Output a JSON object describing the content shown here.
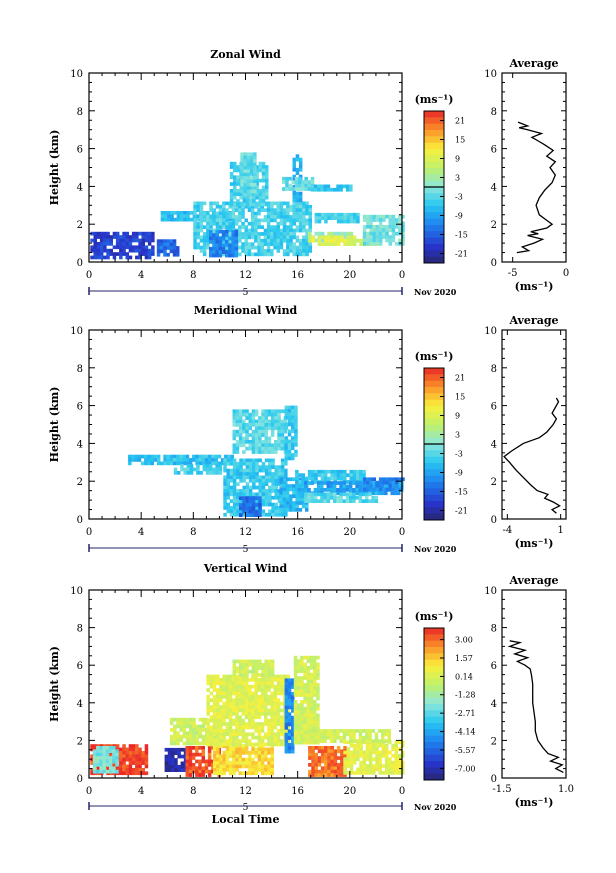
{
  "x_axis": {
    "ticks": [
      "0",
      "4",
      "8",
      "12",
      "16",
      "20",
      "0"
    ],
    "date_marker": "5",
    "date_label": "Nov 2020",
    "xlabel": "Local Time"
  },
  "units_label": "(ms⁻¹)",
  "average_title": "Average",
  "chart_data": [
    {
      "type": "heatmap",
      "title": "Zonal Wind",
      "ylabel": "Height (km)",
      "xlim": [
        0,
        24
      ],
      "ylim": [
        0,
        10
      ],
      "y_ticks": [
        "0",
        "2",
        "4",
        "6",
        "8",
        "10"
      ],
      "colorbar": {
        "units": "(ms⁻¹)",
        "range": [
          -24,
          24
        ],
        "ticks": [
          "21",
          "15",
          "9",
          "3",
          "-3",
          "-9",
          "-15",
          "-21"
        ],
        "tick_values": [
          21,
          15,
          9,
          3,
          -3,
          -9,
          -15,
          -21
        ]
      },
      "regions": [
        {
          "x": [
            0.1,
            4.9
          ],
          "y": [
            0.3,
            1.6
          ],
          "value": -18
        },
        {
          "x": [
            5.2,
            6.8
          ],
          "y": [
            0.4,
            1.2
          ],
          "value": -14
        },
        {
          "x": [
            5.5,
            11
          ],
          "y": [
            2.2,
            2.7
          ],
          "value": -6
        },
        {
          "x": [
            8,
            17
          ],
          "y": [
            0.4,
            3.2
          ],
          "value": -4
        },
        {
          "x": [
            9.2,
            11.2
          ],
          "y": [
            0.3,
            1.7
          ],
          "value": -12
        },
        {
          "x": [
            10.8,
            13.5
          ],
          "y": [
            3.0,
            5.3
          ],
          "value": -4
        },
        {
          "x": [
            11.6,
            12.6
          ],
          "y": [
            3.6,
            5.8
          ],
          "value": -2
        },
        {
          "x": [
            15.6,
            16.2
          ],
          "y": [
            3.2,
            5.7
          ],
          "value": -8
        },
        {
          "x": [
            14.8,
            17.2
          ],
          "y": [
            3.9,
            4.5
          ],
          "value": -2
        },
        {
          "x": [
            17,
            20
          ],
          "y": [
            3.9,
            4.1
          ],
          "value": -5
        },
        {
          "x": [
            16.8,
            20
          ],
          "y": [
            1.2,
            1.6
          ],
          "value": 2
        },
        {
          "x": [
            16.8,
            22
          ],
          "y": [
            0.9,
            1.4
          ],
          "value": 9
        },
        {
          "x": [
            17.3,
            20.6
          ],
          "y": [
            2.1,
            2.6
          ],
          "value": -4
        },
        {
          "x": [
            21,
            24
          ],
          "y": [
            0.9,
            2.5
          ],
          "value": -1
        }
      ],
      "average_profile": {
        "xlim": [
          -6,
          0
        ],
        "x_ticks": [
          "-5",
          "0"
        ],
        "x_tick_values": [
          -5,
          0
        ],
        "xlabel": "(ms⁻¹)",
        "points": [
          [
            -4.6,
            0.5
          ],
          [
            -3.5,
            0.6
          ],
          [
            -4.1,
            0.8
          ],
          [
            -3.0,
            1.0
          ],
          [
            -2.2,
            1.2
          ],
          [
            -3.6,
            1.4
          ],
          [
            -2.6,
            1.5
          ],
          [
            -3.3,
            1.6
          ],
          [
            -1.8,
            1.8
          ],
          [
            -1.3,
            2.0
          ],
          [
            -1.8,
            2.2
          ],
          [
            -2.5,
            2.5
          ],
          [
            -2.8,
            3.0
          ],
          [
            -2.5,
            3.4
          ],
          [
            -2.0,
            3.8
          ],
          [
            -1.3,
            4.2
          ],
          [
            -1.0,
            4.6
          ],
          [
            -1.5,
            5.0
          ],
          [
            -1.0,
            5.3
          ],
          [
            -1.8,
            5.6
          ],
          [
            -1.2,
            5.9
          ],
          [
            -2.0,
            6.2
          ],
          [
            -2.6,
            6.4
          ],
          [
            -3.2,
            6.6
          ],
          [
            -2.3,
            6.8
          ],
          [
            -3.6,
            7.0
          ],
          [
            -4.4,
            7.1
          ],
          [
            -3.6,
            7.2
          ],
          [
            -4.5,
            7.4
          ]
        ]
      }
    },
    {
      "type": "heatmap",
      "title": "Meridional Wind",
      "ylabel": "Height (km)",
      "xlim": [
        0,
        24
      ],
      "ylim": [
        0,
        10
      ],
      "y_ticks": [
        "0",
        "2",
        "4",
        "6",
        "8",
        "10"
      ],
      "colorbar": {
        "units": "(ms⁻¹)",
        "range": [
          -24,
          24
        ],
        "ticks": [
          "21",
          "15",
          "9",
          "3",
          "-3",
          "-9",
          "-15",
          "-21"
        ],
        "tick_values": [
          21,
          15,
          9,
          3,
          -3,
          -9,
          -15,
          -21
        ]
      },
      "regions": [
        {
          "x": [
            3,
            11
          ],
          "y": [
            3.0,
            3.4
          ],
          "value": -6
        },
        {
          "x": [
            6.5,
            10
          ],
          "y": [
            2.4,
            2.9
          ],
          "value": -4
        },
        {
          "x": [
            10.3,
            15
          ],
          "y": [
            0.2,
            3.2
          ],
          "value": -5
        },
        {
          "x": [
            11,
            15
          ],
          "y": [
            3.5,
            5.8
          ],
          "value": -3
        },
        {
          "x": [
            11.5,
            13.2
          ],
          "y": [
            0.3,
            1.2
          ],
          "value": -14
        },
        {
          "x": [
            14.6,
            16.8
          ],
          "y": [
            0.5,
            2.2
          ],
          "value": -7
        },
        {
          "x": [
            15,
            15.8
          ],
          "y": [
            3.2,
            6.0
          ],
          "value": -5
        },
        {
          "x": [
            15.8,
            21
          ],
          "y": [
            2.0,
            2.6
          ],
          "value": -5
        },
        {
          "x": [
            16,
            24
          ],
          "y": [
            1.3,
            2.0
          ],
          "value": -9
        },
        {
          "x": [
            16.5,
            22
          ],
          "y": [
            0.9,
            1.4
          ],
          "value": -3
        },
        {
          "x": [
            21,
            24
          ],
          "y": [
            1.6,
            2.2
          ],
          "value": -12
        }
      ],
      "average_profile": {
        "xlim": [
          -4.5,
          1.5
        ],
        "x_ticks": [
          "-4",
          "1"
        ],
        "x_tick_values": [
          -4,
          1
        ],
        "xlabel": "(ms⁻¹)",
        "points": [
          [
            0.6,
            0.3
          ],
          [
            0.2,
            0.5
          ],
          [
            0.9,
            0.7
          ],
          [
            0.3,
            0.9
          ],
          [
            -0.5,
            1.1
          ],
          [
            -0.2,
            1.3
          ],
          [
            -1.2,
            1.5
          ],
          [
            -1.8,
            1.8
          ],
          [
            -2.5,
            2.2
          ],
          [
            -3.2,
            2.6
          ],
          [
            -3.8,
            3.0
          ],
          [
            -4.3,
            3.3
          ],
          [
            -3.6,
            3.6
          ],
          [
            -2.5,
            4.0
          ],
          [
            -1.0,
            4.3
          ],
          [
            -0.3,
            4.6
          ],
          [
            0.3,
            5.0
          ],
          [
            0.6,
            5.3
          ],
          [
            0.2,
            5.6
          ],
          [
            0.5,
            5.9
          ],
          [
            0.8,
            6.2
          ],
          [
            0.6,
            6.4
          ]
        ]
      }
    },
    {
      "type": "heatmap",
      "title": "Vertical Wind",
      "ylabel": "Height (km)",
      "xlim": [
        0,
        24
      ],
      "ylim": [
        0,
        10
      ],
      "y_ticks": [
        "0",
        "2",
        "4",
        "6",
        "8",
        "10"
      ],
      "colorbar": {
        "units": "(ms⁻¹)",
        "range": [
          -7.9,
          3.9
        ],
        "ticks": [
          "3.00",
          "1.57",
          "0.14",
          "-1.28",
          "-2.71",
          "-4.14",
          "-5.57",
          "-7.00"
        ],
        "tick_values": [
          3.0,
          1.57,
          0.14,
          -1.28,
          -2.71,
          -4.14,
          -5.57,
          -7.0
        ]
      },
      "regions": [
        {
          "x": [
            0.1,
            4.5
          ],
          "y": [
            0.2,
            1.8
          ],
          "value": 3.5
        },
        {
          "x": [
            0.3,
            2.2
          ],
          "y": [
            0.3,
            1.7
          ],
          "value": -2.2
        },
        {
          "x": [
            5.8,
            7.4
          ],
          "y": [
            0.5,
            1.6
          ],
          "value": -7.2
        },
        {
          "x": [
            7.4,
            10
          ],
          "y": [
            0.2,
            1.7
          ],
          "value": 3.3
        },
        {
          "x": [
            9.5,
            14
          ],
          "y": [
            0.2,
            1.8
          ],
          "value": 1.2
        },
        {
          "x": [
            6.2,
            9
          ],
          "y": [
            1.8,
            3.2
          ],
          "value": -0.2
        },
        {
          "x": [
            9,
            15.3
          ],
          "y": [
            1.8,
            5.5
          ],
          "value": 0.3
        },
        {
          "x": [
            11,
            14
          ],
          "y": [
            5.5,
            6.3
          ],
          "value": -0.2
        },
        {
          "x": [
            15.0,
            15.7
          ],
          "y": [
            1.5,
            5.3
          ],
          "value": -4.8
        },
        {
          "x": [
            15.7,
            17.5
          ],
          "y": [
            1.8,
            6.5
          ],
          "value": 0.0
        },
        {
          "x": [
            16.8,
            19.5
          ],
          "y": [
            0.2,
            1.7
          ],
          "value": 2.8
        },
        {
          "x": [
            19.5,
            24
          ],
          "y": [
            0.2,
            2.0
          ],
          "value": 0.4
        },
        {
          "x": [
            17,
            23
          ],
          "y": [
            2.0,
            2.6
          ],
          "value": -0.1
        }
      ],
      "average_profile": {
        "xlim": [
          -1.5,
          1.0
        ],
        "x_ticks": [
          "-1.5",
          "1.0"
        ],
        "x_tick_values": [
          -1.5,
          1.0
        ],
        "xlabel": "(ms⁻¹)",
        "points": [
          [
            0.9,
            0.3
          ],
          [
            0.6,
            0.5
          ],
          [
            0.85,
            0.7
          ],
          [
            0.4,
            0.9
          ],
          [
            0.7,
            1.1
          ],
          [
            0.3,
            1.3
          ],
          [
            0.1,
            1.6
          ],
          [
            -0.1,
            2.0
          ],
          [
            -0.2,
            2.5
          ],
          [
            -0.2,
            3.0
          ],
          [
            -0.25,
            3.5
          ],
          [
            -0.3,
            4.0
          ],
          [
            -0.3,
            4.5
          ],
          [
            -0.3,
            5.0
          ],
          [
            -0.35,
            5.5
          ],
          [
            -0.4,
            5.8
          ],
          [
            -0.6,
            6.0
          ],
          [
            -0.9,
            6.2
          ],
          [
            -0.5,
            6.4
          ],
          [
            -1.0,
            6.6
          ],
          [
            -0.6,
            6.8
          ],
          [
            -1.2,
            7.0
          ],
          [
            -0.8,
            7.2
          ],
          [
            -1.2,
            7.3
          ]
        ]
      }
    }
  ]
}
